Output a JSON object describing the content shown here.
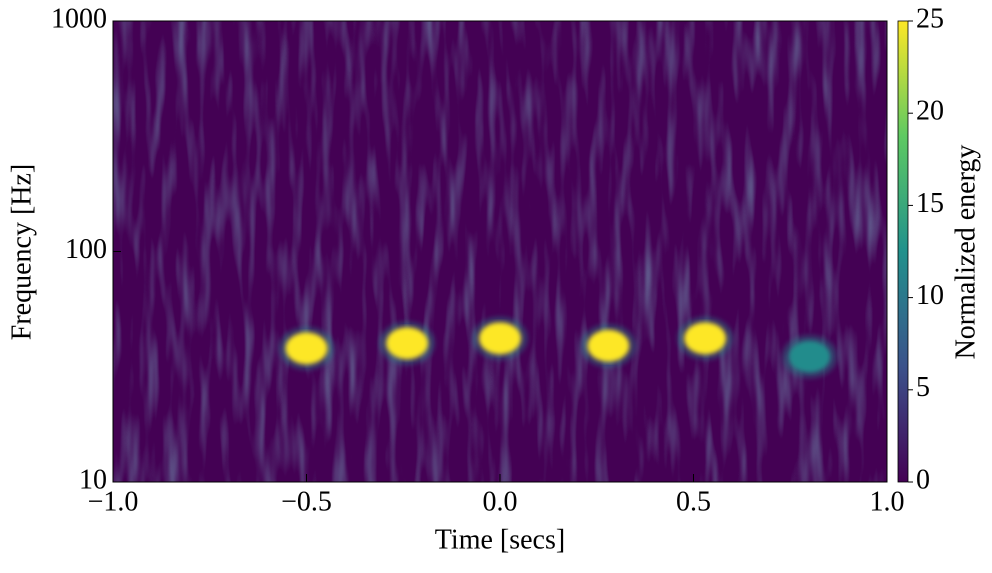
{
  "chart_data": {
    "type": "spectrogram",
    "xlabel": "Time [secs]",
    "ylabel": "Frequency [Hz]",
    "colorbar_label": "Normalized energy",
    "colormap": "viridis",
    "log_y": true,
    "xlim": [
      -1,
      1
    ],
    "xticks": [
      {
        "value": -1,
        "label": "−1.0"
      },
      {
        "value": -0.5,
        "label": "−0.5"
      },
      {
        "value": 0,
        "label": "0.0"
      },
      {
        "value": 0.5,
        "label": "0.5"
      },
      {
        "value": 1,
        "label": "1.0"
      }
    ],
    "ylim": [
      10,
      1000
    ],
    "yticks": [
      10,
      100,
      1000
    ],
    "clim": [
      0,
      25
    ],
    "cticks": [
      0,
      5,
      10,
      15,
      20,
      25
    ],
    "events": {
      "x": [
        -0.5,
        -0.24,
        0.0,
        0.28,
        0.53,
        0.8
      ],
      "y": [
        38,
        40,
        42,
        39,
        42,
        35
      ],
      "values": [
        25,
        25,
        25,
        25,
        25,
        12
      ]
    }
  }
}
